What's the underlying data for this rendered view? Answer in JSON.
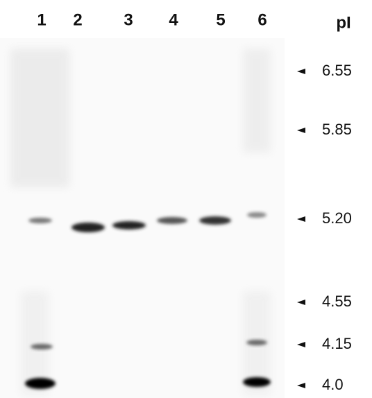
{
  "lanes": [
    "1",
    "2",
    "3",
    "4",
    "5",
    "6"
  ],
  "marker_title": "pI",
  "markers": [
    "6.55",
    "5.85",
    "5.20",
    "4.55",
    "4.15",
    "4.0"
  ]
}
